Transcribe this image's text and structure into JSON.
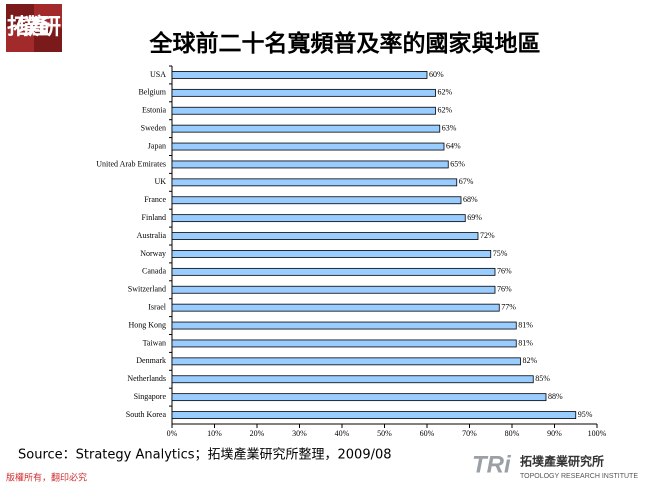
{
  "slide": {
    "logo": "拓墣產研",
    "source": "Source：Strategy Analytics；拓墣產業研究所整理，2009/08",
    "copyright": "版權所有，翻印必究",
    "org_logo": "TRi",
    "org_name": "拓墣產業研究所",
    "org_name_en": "TOPOLOGY RESEARCH INSTITUTE"
  },
  "chart_data": {
    "type": "hbar",
    "title": "全球前二十名寬頻普及率的國家與地區",
    "categories": [
      "USA",
      "Belgium",
      "Estonia",
      "Sweden",
      "Japan",
      "United Arab Emirates",
      "UK",
      "France",
      "Finland",
      "Australia",
      "Norway",
      "Canada",
      "Switzerland",
      "Israel",
      "Hong Kong",
      "Taiwan",
      "Denmark",
      "Netherlands",
      "Singapore",
      "South Korea"
    ],
    "values": [
      60,
      62,
      62,
      63,
      64,
      65,
      67,
      68,
      69,
      72,
      75,
      76,
      76,
      77,
      81,
      81,
      82,
      85,
      88,
      95
    ],
    "value_labels": [
      "60%",
      "62%",
      "62%",
      "63%",
      "64%",
      "65%",
      "67%",
      "68%",
      "69%",
      "72%",
      "75%",
      "76%",
      "76%",
      "77%",
      "81%",
      "81%",
      "82%",
      "85%",
      "88%",
      "95%"
    ],
    "color": "#99ccff",
    "xlim": [
      0,
      100
    ],
    "xticks": [
      {
        "value": 0,
        "label": "0%"
      },
      {
        "value": 10,
        "label": "10%"
      },
      {
        "value": 20,
        "label": "20%"
      },
      {
        "value": 30,
        "label": "30%"
      },
      {
        "value": 40,
        "label": "40%"
      },
      {
        "value": 50,
        "label": "50%"
      },
      {
        "value": 60,
        "label": "60%"
      },
      {
        "value": 70,
        "label": "70%"
      },
      {
        "value": 80,
        "label": "80%"
      },
      {
        "value": 90,
        "label": "90%"
      },
      {
        "value": 100,
        "label": "100%"
      }
    ]
  }
}
